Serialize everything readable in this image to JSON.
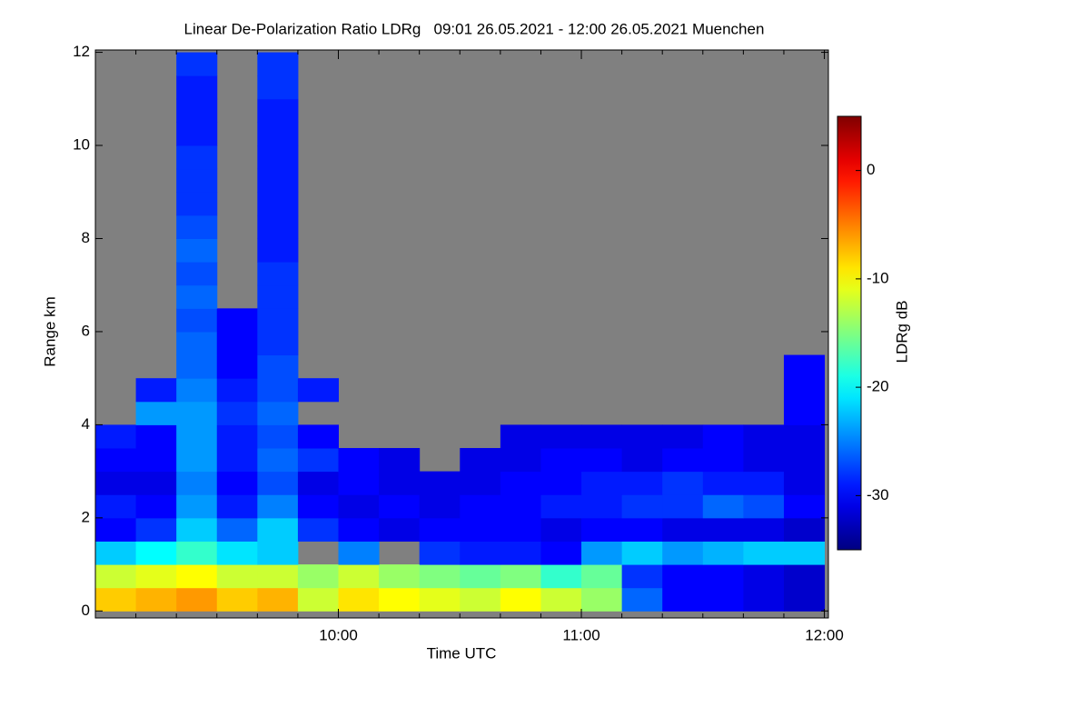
{
  "chart_data": {
    "type": "heatmap",
    "title": "Linear De-Polarization Ratio LDRg   09:01 26.05.2021 - 12:00 26.05.2021 Muenchen",
    "xlabel": "Time UTC",
    "ylabel": "Range km",
    "colorbar_label": "LDRg dB",
    "colormap": "jet",
    "nodata_color": "#808080",
    "xlim": [
      540,
      721
    ],
    "xticks": [
      {
        "value": 600,
        "label": "10:00"
      },
      {
        "value": 660,
        "label": "11:00"
      },
      {
        "value": 720,
        "label": "12:00"
      }
    ],
    "xminor_ticks": [
      550,
      560,
      570,
      580,
      590,
      610,
      620,
      630,
      640,
      650,
      670,
      680,
      690,
      700,
      710
    ],
    "ylim": [
      -0.15,
      12.05
    ],
    "yticks": [
      0,
      2,
      4,
      6,
      8,
      10,
      12
    ],
    "zlim": [
      -35,
      5
    ],
    "zticks": [
      0,
      -10,
      -20,
      -30
    ],
    "x_edges": [
      540,
      550,
      560,
      570,
      580,
      590,
      600,
      610,
      620,
      630,
      640,
      650,
      660,
      670,
      680,
      690,
      700,
      710,
      720
    ],
    "y_edges": [
      0,
      0.5,
      1,
      1.5,
      2,
      2.5,
      3,
      3.5,
      4,
      4.5,
      5,
      5.5,
      6,
      6.5,
      7,
      7.5,
      8,
      8.5,
      9,
      9.5,
      10,
      10.5,
      11,
      11.5,
      12
    ],
    "z": [
      [
        -8,
        -7,
        -6,
        -8,
        -7,
        -12,
        -9,
        -10,
        -11,
        -12,
        -10,
        -12,
        -14,
        -26,
        -30,
        -30,
        -31,
        -32
      ],
      [
        -12,
        -11,
        -10,
        -12,
        -12,
        -14,
        -12,
        -14,
        -15,
        -16,
        -15,
        -18,
        -16,
        -28,
        -30,
        -30,
        -31,
        -32
      ],
      [
        -22,
        -20,
        -18,
        -21,
        -22,
        null,
        -25,
        null,
        -28,
        -29,
        -29,
        -30,
        -24,
        -22,
        -24,
        -23,
        -22,
        -22
      ],
      [
        -30,
        -28,
        -22,
        -26,
        -22,
        -28,
        -30,
        -31,
        -30,
        -30,
        -30,
        -31,
        -30,
        -30,
        -31,
        -31,
        -31,
        -32
      ],
      [
        -29,
        -30,
        -24,
        -29,
        -25,
        -30,
        -31,
        -30,
        -31,
        -30,
        -30,
        -29,
        -29,
        -28,
        -28,
        -26,
        -27,
        -30
      ],
      [
        -31,
        -31,
        -25,
        -30,
        -27,
        -31,
        -30,
        -31,
        -31,
        -31,
        -30,
        -30,
        -29,
        -29,
        -28,
        -29,
        -29,
        -31
      ],
      [
        -30,
        -30,
        -24,
        -29,
        -26,
        -28,
        -30,
        -31,
        null,
        -31,
        -31,
        -30,
        -30,
        -31,
        -30,
        -30,
        -31,
        -31
      ],
      [
        -29,
        -30,
        -24,
        -29,
        -27,
        -30,
        null,
        null,
        null,
        null,
        -31,
        -31,
        -31,
        -31,
        -31,
        -30,
        -31,
        -31
      ],
      [
        null,
        -24,
        -24,
        -28,
        -26,
        null,
        null,
        null,
        null,
        null,
        null,
        null,
        null,
        null,
        null,
        null,
        null,
        -30
      ],
      [
        null,
        -29,
        -25,
        -29,
        -27,
        -29,
        null,
        null,
        null,
        null,
        null,
        null,
        null,
        null,
        null,
        null,
        null,
        -30
      ],
      [
        null,
        null,
        -26,
        -30,
        -27,
        null,
        null,
        null,
        null,
        null,
        null,
        null,
        null,
        null,
        null,
        null,
        null,
        -30
      ],
      [
        null,
        null,
        -26,
        -30,
        -28,
        null,
        null,
        null,
        null,
        null,
        null,
        null,
        null,
        null,
        null,
        null,
        null,
        null
      ],
      [
        null,
        null,
        -27,
        -30,
        -28,
        null,
        null,
        null,
        null,
        null,
        null,
        null,
        null,
        null,
        null,
        null,
        null,
        null
      ],
      [
        null,
        null,
        -26,
        null,
        -28,
        null,
        null,
        null,
        null,
        null,
        null,
        null,
        null,
        null,
        null,
        null,
        null,
        null
      ],
      [
        null,
        null,
        -27,
        null,
        -28,
        null,
        null,
        null,
        null,
        null,
        null,
        null,
        null,
        null,
        null,
        null,
        null,
        null
      ],
      [
        null,
        null,
        -26,
        null,
        -29,
        null,
        null,
        null,
        null,
        null,
        null,
        null,
        null,
        null,
        null,
        null,
        null,
        null
      ],
      [
        null,
        null,
        -27,
        null,
        -29,
        null,
        null,
        null,
        null,
        null,
        null,
        null,
        null,
        null,
        null,
        null,
        null,
        null
      ],
      [
        null,
        null,
        -28,
        null,
        -29,
        null,
        null,
        null,
        null,
        null,
        null,
        null,
        null,
        null,
        null,
        null,
        null,
        null
      ],
      [
        null,
        null,
        -28,
        null,
        -29,
        null,
        null,
        null,
        null,
        null,
        null,
        null,
        null,
        null,
        null,
        null,
        null,
        null
      ],
      [
        null,
        null,
        -28,
        null,
        -29,
        null,
        null,
        null,
        null,
        null,
        null,
        null,
        null,
        null,
        null,
        null,
        null,
        null
      ],
      [
        null,
        null,
        -29,
        null,
        -29,
        null,
        null,
        null,
        null,
        null,
        null,
        null,
        null,
        null,
        null,
        null,
        null,
        null
      ],
      [
        null,
        null,
        -29,
        null,
        -29,
        null,
        null,
        null,
        null,
        null,
        null,
        null,
        null,
        null,
        null,
        null,
        null,
        null
      ],
      [
        null,
        null,
        -29,
        null,
        -28,
        null,
        null,
        null,
        null,
        null,
        null,
        null,
        null,
        null,
        null,
        null,
        null,
        null
      ],
      [
        null,
        null,
        -28,
        null,
        -28,
        null,
        null,
        null,
        null,
        null,
        null,
        null,
        null,
        null,
        null,
        null,
        null,
        null
      ]
    ]
  }
}
